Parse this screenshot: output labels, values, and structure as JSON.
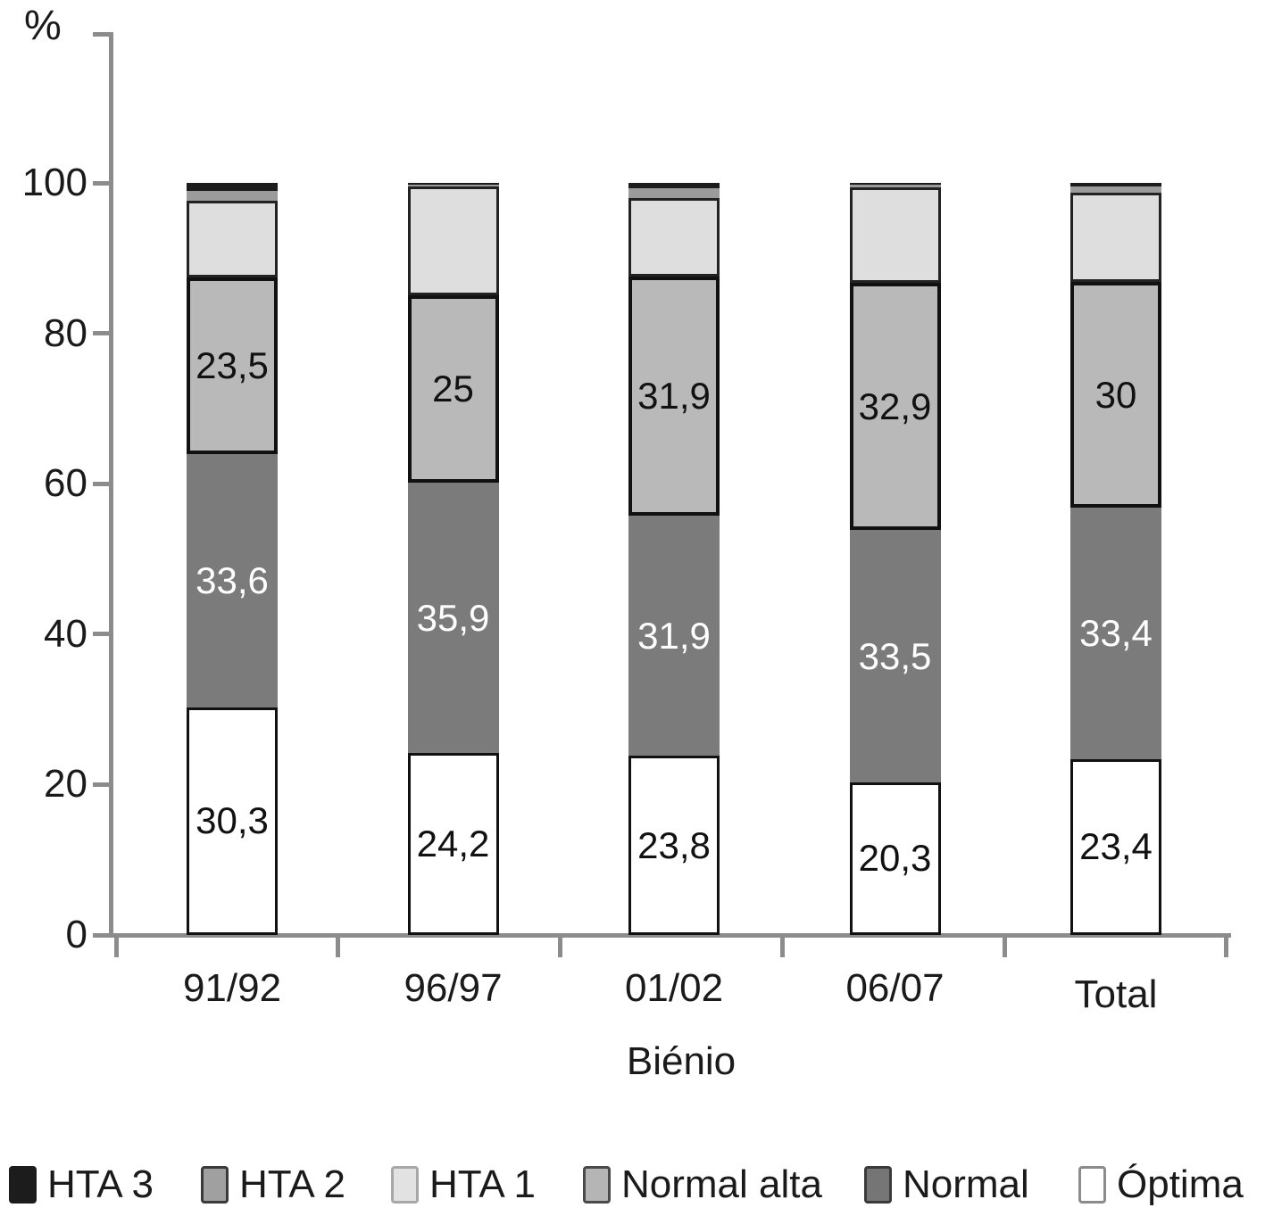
{
  "chart_data": {
    "type": "stacked-bar",
    "title": "",
    "xlabel": "Biénio",
    "ylabel": "%",
    "ylim": [
      0,
      100
    ],
    "yticks": [
      0,
      20,
      40,
      60,
      80,
      100
    ],
    "grid": false,
    "legend_position": "bottom",
    "categories": [
      "91/92",
      "96/97",
      "01/02",
      "06/07",
      "Total"
    ],
    "series": [
      {
        "name": "Óptima",
        "color": "#ffffff",
        "border_color": "#111111",
        "border_px": 3,
        "label_color": "#111111",
        "show_labels": true,
        "values": [
          30.3,
          24.2,
          23.8,
          20.3,
          23.4
        ],
        "labels": [
          "30,3",
          "24,2",
          "23,8",
          "20,3",
          "23,4"
        ]
      },
      {
        "name": "Normal",
        "color": "#7b7b7b",
        "border_color": "",
        "border_px": 0,
        "label_color": "#ffffff",
        "show_labels": true,
        "values": [
          33.6,
          35.9,
          31.9,
          33.5,
          33.4
        ],
        "labels": [
          "33,6",
          "35,9",
          "31,9",
          "33,5",
          "33,4"
        ]
      },
      {
        "name": "Normal alta",
        "color": "#b9b9b9",
        "border_color": "#111111",
        "border_px": 4,
        "label_color": "#111111",
        "show_labels": true,
        "values": [
          23.5,
          25,
          31.9,
          32.9,
          30
        ],
        "labels": [
          "23,5",
          "25",
          "31,9",
          "32,9",
          "30"
        ]
      },
      {
        "name": "HTA 1",
        "color": "#dedede",
        "border_color": "#222222",
        "border_px": 3,
        "label_color": "#111111",
        "show_labels": false,
        "values": [
          10.2,
          14.4,
          10.4,
          12.7,
          11.9
        ],
        "labels": [
          "",
          "",
          "",
          "",
          ""
        ]
      },
      {
        "name": "HTA 2",
        "color": "#9b9b9b",
        "border_color": "",
        "border_px": 0,
        "label_color": "#111111",
        "show_labels": false,
        "values": [
          1.3,
          0.3,
          1.3,
          0.4,
          0.8
        ],
        "labels": [
          "",
          "",
          "",
          "",
          ""
        ]
      },
      {
        "name": "HTA 3",
        "color": "#1c1c1c",
        "border_color": "",
        "border_px": 0,
        "label_color": "#ffffff",
        "show_labels": false,
        "values": [
          1.1,
          0.2,
          0.7,
          0.2,
          0.5
        ],
        "labels": [
          "",
          "",
          "",
          "",
          ""
        ]
      }
    ],
    "legend": [
      {
        "name": "HTA 3",
        "color": "#1c1c1c",
        "border_color": "#1c1c1c"
      },
      {
        "name": "HTA 2",
        "color": "#a0a0a0",
        "border_color": "#3a3a3a"
      },
      {
        "name": "HTA 1",
        "color": "#e2e2e2",
        "border_color": "#a8a8a8"
      },
      {
        "name": "Normal alta",
        "color": "#b5b5b5",
        "border_color": "#4a4a4a"
      },
      {
        "name": "Normal",
        "color": "#757575",
        "border_color": "#3a3a3a"
      },
      {
        "name": "Óptima",
        "color": "#ffffff",
        "border_color": "#8c8c8c"
      }
    ]
  }
}
